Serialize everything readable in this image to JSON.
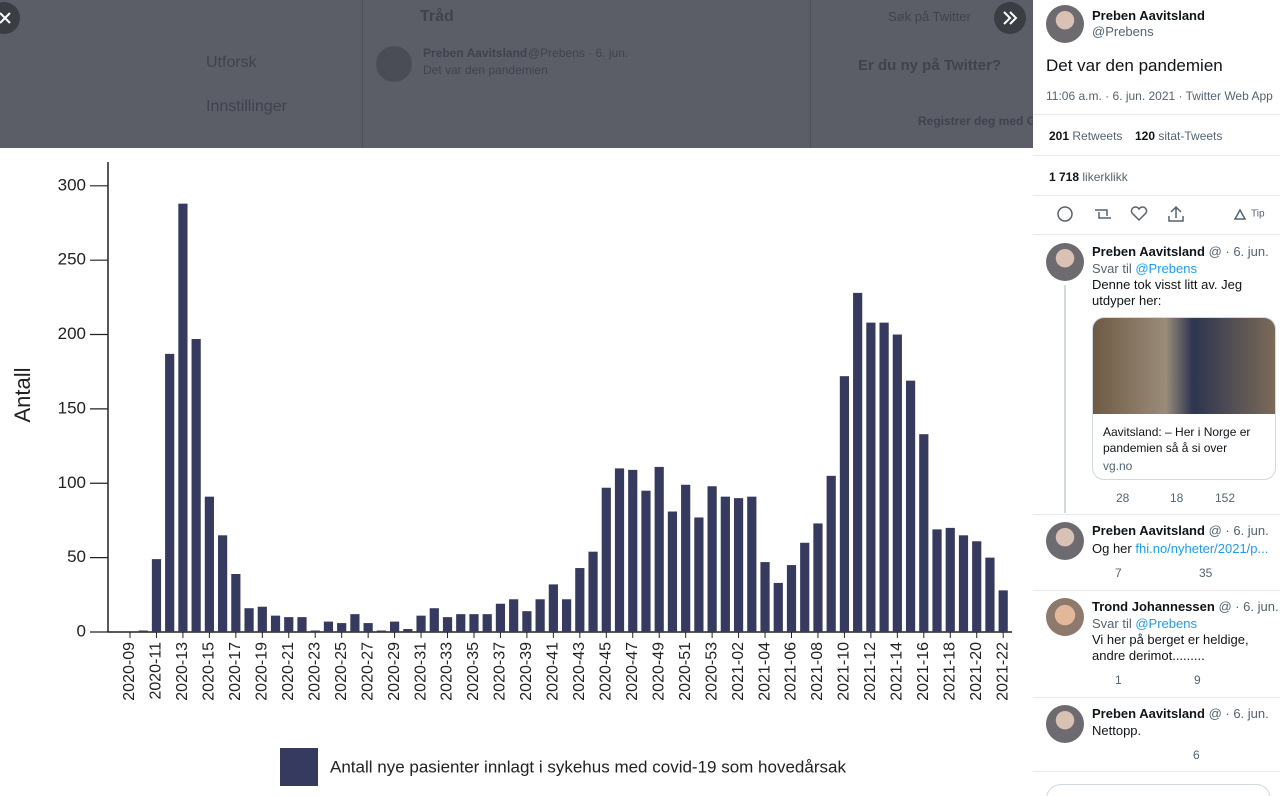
{
  "backdrop": {
    "nav": [
      "Utforsk",
      "Innstillinger"
    ],
    "thread_title": "Tråd",
    "search": "Søk på Twitter",
    "tweet_author": "Preben Aavitsland",
    "tweet_meta": "@Prebens · 6. jun.",
    "tweet_text": "Det var den pandemien",
    "signup_title": "Er du ny på Twitter?",
    "signup_button": "Registrer deg med G"
  },
  "chart_data": {
    "type": "bar",
    "y_label": "Antall",
    "categories": [
      "2020-09",
      null,
      "2020-11",
      null,
      "2020-13",
      null,
      "2020-15",
      null,
      "2020-17",
      null,
      "2020-19",
      null,
      "2020-21",
      null,
      "2020-23",
      null,
      "2020-25",
      null,
      "2020-27",
      null,
      "2020-29",
      null,
      "2020-31",
      null,
      "2020-33",
      null,
      "2020-35",
      null,
      "2020-37",
      null,
      "2020-39",
      null,
      "2020-41",
      null,
      "2020-43",
      null,
      "2020-45",
      null,
      "2020-47",
      null,
      "2020-49",
      null,
      "2020-51",
      null,
      "2020-53",
      null,
      "2021-02",
      null,
      "2021-04",
      null,
      "2021-06",
      null,
      "2021-08",
      null,
      "2021-10",
      null,
      "2021-12",
      null,
      "2021-14",
      null,
      "2021-16",
      null,
      "2021-18",
      null,
      "2021-20",
      null,
      "2021-22"
    ],
    "series": [
      {
        "name": "Antall nye pasienter innlagt i sykehus med covid-19 som hovedårsak",
        "color": "#363a5e",
        "values": [
          0,
          1,
          49,
          187,
          288,
          197,
          91,
          65,
          39,
          16,
          17,
          11,
          10,
          10,
          1,
          7,
          6,
          12,
          6,
          1,
          7,
          2,
          11,
          16,
          10,
          12,
          12,
          12,
          19,
          22,
          14,
          22,
          32,
          22,
          43,
          54,
          97,
          110,
          109,
          95,
          111,
          81,
          99,
          77,
          98,
          91,
          90,
          91,
          47,
          33,
          45,
          60,
          73,
          105,
          172,
          228,
          208,
          208,
          200,
          169,
          133,
          69,
          70,
          65,
          61,
          50,
          28
        ]
      }
    ],
    "ylim": [
      0,
      316
    ],
    "yticks": [
      0,
      50,
      100,
      150,
      200,
      250,
      300
    ],
    "grid": false
  },
  "tweet": {
    "author": "Preben Aavitsland",
    "handle": "@Prebens",
    "text": "Det var den pandemien",
    "meta": "11:06 a.m. · 6. jun. 2021 · Twitter Web App",
    "retweets": "201",
    "retweets_label": "Retweets",
    "quotes": "120",
    "quotes_label": "sitat-Tweets",
    "likes": "1 718",
    "likes_label": "likerklikk",
    "tip": "Tip"
  },
  "replies": [
    {
      "author": "Preben Aavitsland",
      "handle": "@ · 6. jun.",
      "reply_to_label": "Svar til",
      "reply_to": "@Prebens",
      "text": "Denne tok visst litt av. Jeg utdyper her:",
      "card_title": "Aavitsland: – Her i Norge er pandemien så å si over",
      "card_domain": "vg.no",
      "replies": "28",
      "retweets": "18",
      "likes": "152"
    },
    {
      "author": "Preben Aavitsland",
      "handle": "@ · 6. jun.",
      "text": "Og her",
      "link": "fhi.no/nyheter/2021/p...",
      "replies": "7",
      "likes": "35"
    },
    {
      "author": "Trond Johannessen",
      "handle": "@ · 6. jun.",
      "reply_to_label": "Svar til",
      "reply_to": "@Prebens",
      "text": "Vi her på berget er heldige, andre derimot.........",
      "replies": "1",
      "likes": "9"
    },
    {
      "author": "Preben Aavitsland",
      "handle": "@ · 6. jun.",
      "text": "Nettopp.",
      "likes": "6"
    }
  ]
}
